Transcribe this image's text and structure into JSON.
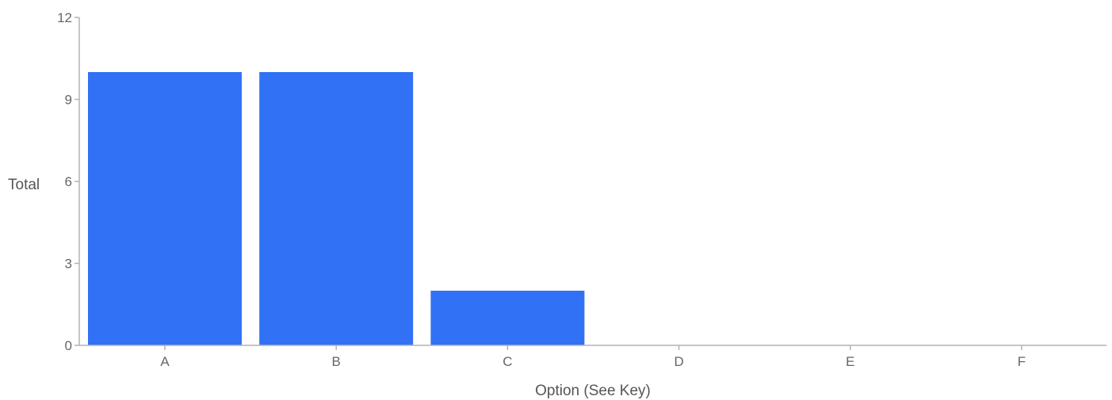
{
  "chart_data": {
    "type": "bar",
    "title": "",
    "xlabel": "Option (See Key)",
    "ylabel": "Total",
    "categories": [
      "A",
      "B",
      "C",
      "D",
      "E",
      "F"
    ],
    "values": [
      10,
      10,
      2,
      0,
      0,
      0
    ],
    "ylim": [
      0,
      12
    ],
    "yticks": [
      0,
      3,
      6,
      9,
      12
    ],
    "grid": false,
    "bar_color": "#3171f5"
  }
}
